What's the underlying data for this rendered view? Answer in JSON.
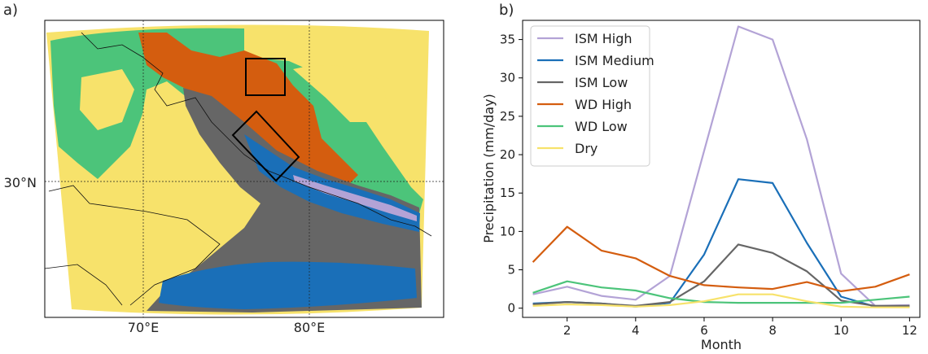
{
  "panel_a": {
    "label": "a)",
    "lat_label": "30°N",
    "lon_labels": [
      "70°E",
      "80°E"
    ],
    "colors": {
      "ism_high": "#b3a3d6",
      "ism_medium": "#1a6fb8",
      "ism_low": "#666666",
      "wd_high": "#d45d0f",
      "wd_low": "#4cc47a",
      "dry": "#f7e26b"
    }
  },
  "panel_b": {
    "label": "b)"
  },
  "chart_data": {
    "type": "line",
    "title": "",
    "xlabel": "Month",
    "ylabel": "Precipitation (mm/day)",
    "xlim": [
      0.7,
      12.3
    ],
    "ylim": [
      -1.2,
      37.5
    ],
    "xticks": [
      2,
      4,
      6,
      8,
      10,
      12
    ],
    "yticks": [
      0,
      5,
      10,
      15,
      20,
      25,
      30,
      35
    ],
    "legend_position": "top-left",
    "x": [
      1,
      2,
      3,
      4,
      5,
      6,
      7,
      8,
      9,
      10,
      11,
      12
    ],
    "series": [
      {
        "name": "ISM High",
        "color": "#b3a3d6",
        "values": [
          1.8,
          2.8,
          1.6,
          1.1,
          4.2,
          20.5,
          36.7,
          35.0,
          22.0,
          4.5,
          0.3,
          0.4
        ]
      },
      {
        "name": "ISM Medium",
        "color": "#1a6fb8",
        "values": [
          0.6,
          0.8,
          0.6,
          0.2,
          0.7,
          7.0,
          16.8,
          16.3,
          8.5,
          1.5,
          0.2,
          0.2
        ]
      },
      {
        "name": "ISM Low",
        "color": "#666666",
        "values": [
          0.5,
          0.8,
          0.6,
          0.3,
          0.8,
          3.5,
          8.3,
          7.2,
          4.8,
          1.0,
          0.3,
          0.3
        ]
      },
      {
        "name": "WD High",
        "color": "#d45d0f",
        "values": [
          6.0,
          10.6,
          7.5,
          6.5,
          4.2,
          3.0,
          2.7,
          2.5,
          3.4,
          2.2,
          2.8,
          4.4
        ]
      },
      {
        "name": "WD Low",
        "color": "#4cc47a",
        "values": [
          2.0,
          3.5,
          2.7,
          2.3,
          1.3,
          0.8,
          0.7,
          0.7,
          0.7,
          0.7,
          1.1,
          1.5
        ]
      },
      {
        "name": "Dry",
        "color": "#f7e26b",
        "values": [
          0.3,
          0.5,
          0.4,
          0.2,
          0.4,
          0.9,
          1.8,
          1.8,
          0.9,
          0.2,
          0.1,
          0.1
        ]
      }
    ]
  }
}
